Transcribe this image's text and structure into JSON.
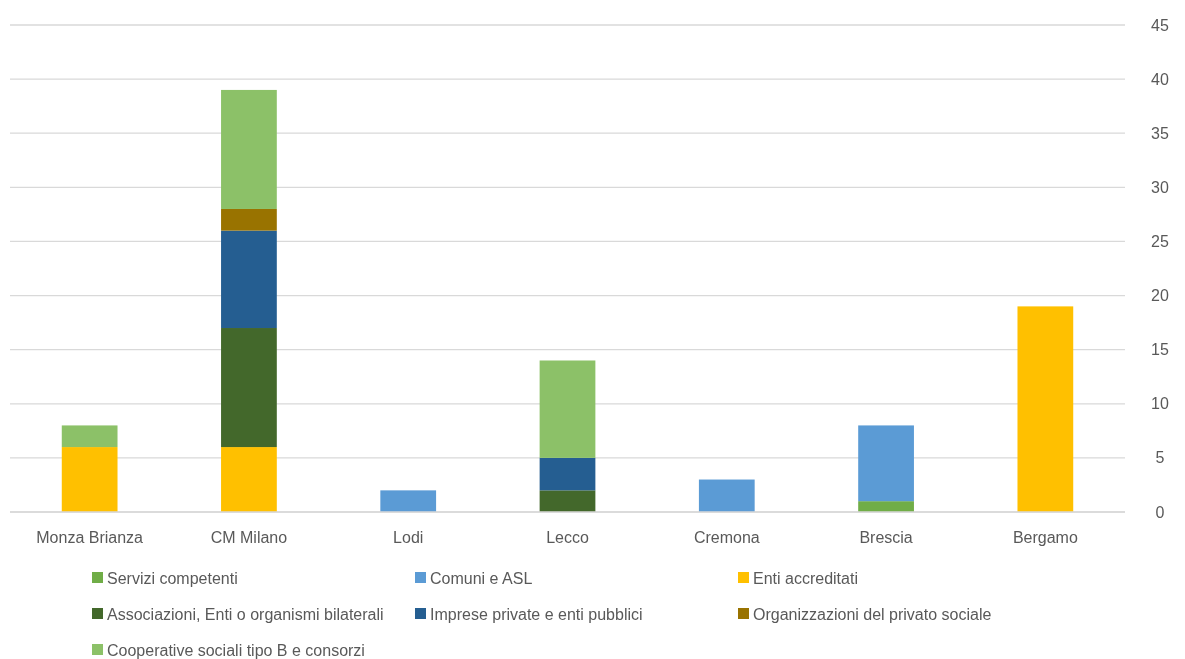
{
  "chart_data": {
    "type": "bar",
    "stacked": true,
    "categories": [
      "Monza Brianza",
      "CM Milano",
      "Lodi",
      "Lecco",
      "Cremona",
      "Brescia",
      "Bergamo"
    ],
    "series": [
      {
        "name": "Servizi competenti",
        "color": "#70ad47",
        "values": [
          null,
          null,
          null,
          null,
          null,
          1,
          null
        ]
      },
      {
        "name": "Comuni e ASL",
        "color": "#5b9bd5",
        "values": [
          null,
          null,
          2,
          null,
          3,
          7,
          null
        ]
      },
      {
        "name": "Enti accreditati",
        "color": "#ffc000",
        "values": [
          6,
          6,
          null,
          null,
          null,
          null,
          19
        ]
      },
      {
        "name": "Associazioni, Enti o organismi bilaterali",
        "color": "#43682b",
        "values": [
          null,
          11,
          null,
          2,
          null,
          null,
          null
        ]
      },
      {
        "name": "Imprese private e enti pubblici",
        "color": "#255e91",
        "values": [
          null,
          9,
          null,
          3,
          null,
          null,
          null
        ]
      },
      {
        "name": "Organizzazioni del privato sociale",
        "color": "#997300",
        "values": [
          null,
          2,
          null,
          null,
          null,
          null,
          null
        ]
      },
      {
        "name": "Cooperative sociali tipo B e consorzi",
        "color": "#8cc168",
        "values": [
          2,
          11,
          null,
          9,
          null,
          null,
          null
        ]
      }
    ],
    "ylim": [
      0,
      45
    ],
    "yticks": [
      0,
      5,
      10,
      15,
      20,
      25,
      30,
      35,
      40,
      45
    ],
    "grid": "y",
    "legend": "bottom"
  }
}
